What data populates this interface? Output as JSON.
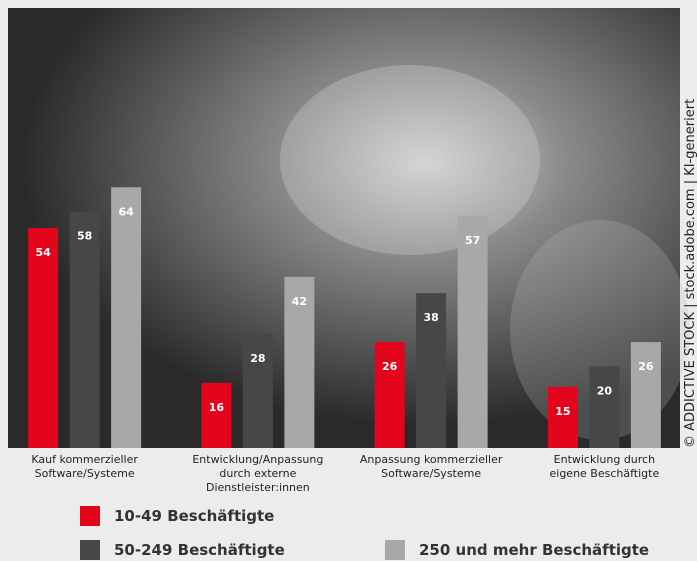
{
  "chart_data": {
    "type": "bar",
    "credit": "© ADDICTIVE STOCK | stock.adobe.com | KI-generiert",
    "categories": [
      "Kauf kommerzieller\nSoftware/Systeme",
      "Entwicklung/Anpassung\ndurch externe\nDienstleister:innen",
      "Anpassung kommerzieller\nSoftware/Systeme",
      "Entwicklung durch\neigene Beschäftigte"
    ],
    "series": [
      {
        "name": "10-49 Beschäftigte",
        "color": "#e3051b",
        "values": [
          54,
          16,
          26,
          15
        ]
      },
      {
        "name": "50-249 Beschäftigte",
        "color": "#474747",
        "values": [
          58,
          28,
          38,
          20
        ]
      },
      {
        "name": "250 und mehr Beschäftigte",
        "color": "#a8a8a8",
        "values": [
          64,
          42,
          57,
          26
        ]
      }
    ],
    "ylim": [
      0,
      108
    ]
  }
}
